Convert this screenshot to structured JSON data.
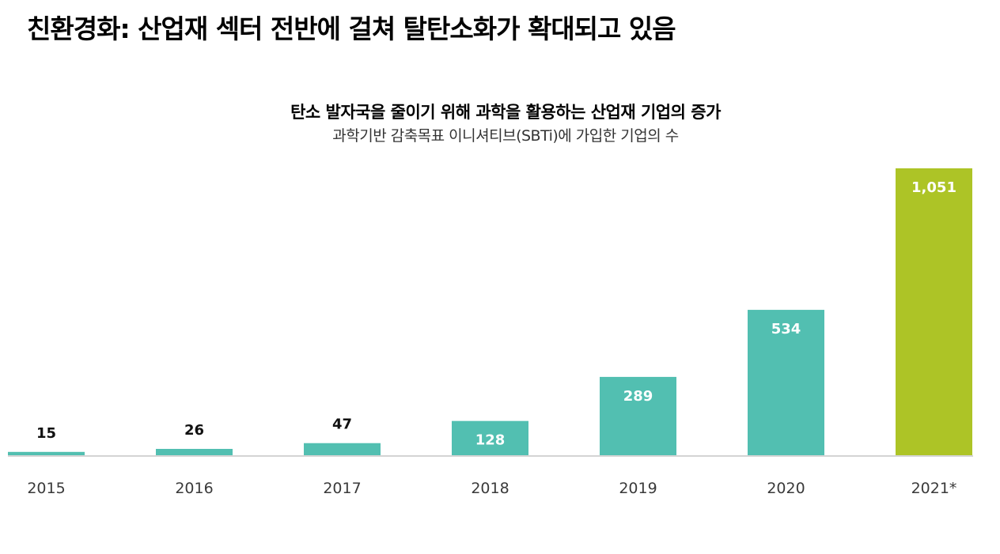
{
  "page": {
    "title": "친환경화:  산업재 섹터 전반에 걸쳐 탈탄소화가 확대되고 있음"
  },
  "chart_data": {
    "type": "bar",
    "title": "탄소 발자국을 줄이기 위해 과학을 활용하는 산업재 기업의 증가",
    "subtitle": "과학기반 감축목표 이니셔티브(SBTi)에 가입한 기업의 수",
    "categories": [
      "2015",
      "2016",
      "2017",
      "2018",
      "2019",
      "2020",
      "2021*"
    ],
    "values": [
      15,
      26,
      47,
      128,
      289,
      534,
      1051
    ],
    "value_labels": [
      "15",
      "26",
      "47",
      "128",
      "289",
      "534",
      "1,051"
    ],
    "bar_colors": [
      "#52bfb1",
      "#52bfb1",
      "#52bfb1",
      "#52bfb1",
      "#52bfb1",
      "#52bfb1",
      "#adc426"
    ],
    "ylim": [
      0,
      1051
    ],
    "xlabel": "",
    "ylabel": "",
    "grid": false,
    "legend": "none"
  }
}
